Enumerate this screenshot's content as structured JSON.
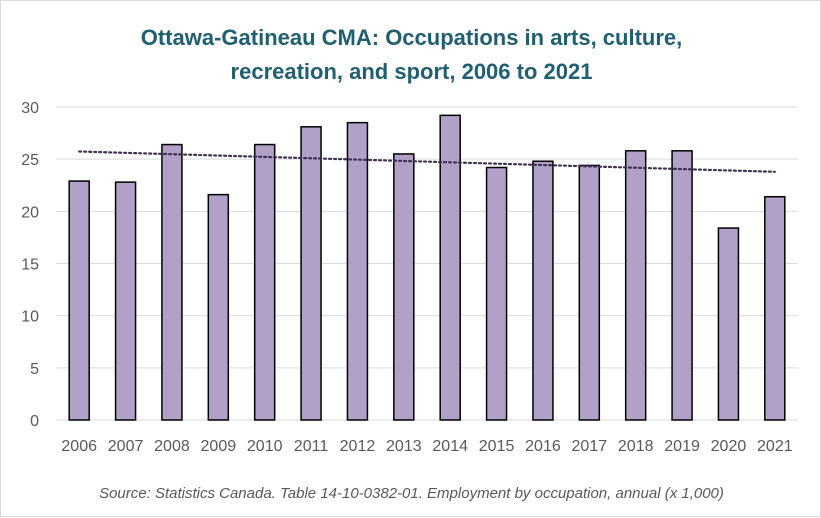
{
  "chart_data": {
    "type": "bar",
    "title_lines": [
      "Ottawa-Gatineau CMA: Occupations in arts, culture,",
      "recreation, and sport, 2006 to 2021"
    ],
    "categories": [
      "2006",
      "2007",
      "2008",
      "2009",
      "2010",
      "2011",
      "2012",
      "2013",
      "2014",
      "2015",
      "2016",
      "2017",
      "2018",
      "2019",
      "2020",
      "2021"
    ],
    "values": [
      22.9,
      22.8,
      26.4,
      21.6,
      26.4,
      28.1,
      28.5,
      25.5,
      29.2,
      24.2,
      24.8,
      24.4,
      25.8,
      25.8,
      18.4,
      21.4
    ],
    "ylim": [
      0,
      30
    ],
    "yticks": [
      0,
      5,
      10,
      15,
      20,
      25,
      30
    ],
    "grid": true,
    "trendline": {
      "type": "linear",
      "style": "dotted"
    },
    "colors": {
      "bar_fill": "#b1a0c7",
      "bar_stroke": "#000000",
      "trend": "#403152",
      "grid": "#d9d9d9",
      "title": "#1f5f6f"
    }
  },
  "source": "Source: Statistics Canada. Table 14-10-0382-01. Employment by occupation, annual (x 1,000)"
}
